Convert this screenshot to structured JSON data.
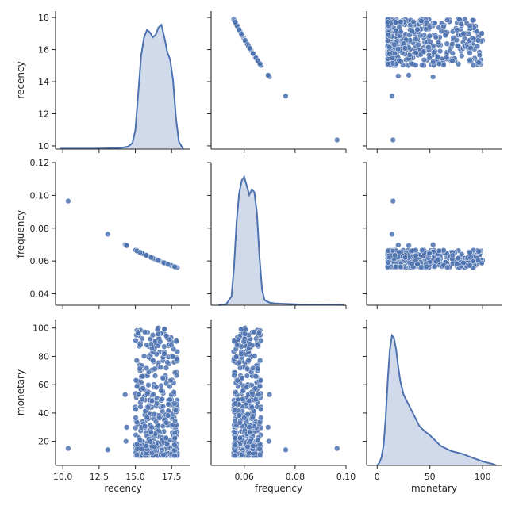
{
  "chart_data": {
    "type": "pairplot",
    "variables": [
      "recency",
      "frequency",
      "monetary"
    ],
    "colors": {
      "accent": "#4c72b0",
      "fill": "#c9d3e6",
      "axis": "#262626",
      "point_edge": "#ffffff"
    },
    "axes": {
      "recency": {
        "label": "recency",
        "x_range": [
          9.5,
          18.8
        ],
        "y_range": [
          9.8,
          18.4
        ],
        "ticks": [
          10,
          12,
          14,
          16,
          18
        ],
        "x_ticks": [
          10.0,
          12.5,
          15.0,
          17.5
        ],
        "x_tick_labels": [
          "10.0",
          "12.5",
          "15.0",
          "17.5"
        ],
        "y_tick_labels": [
          "10",
          "12",
          "14",
          "16",
          "18"
        ]
      },
      "frequency": {
        "label": "frequency",
        "x_range": [
          0.047,
          0.1
        ],
        "y_range": [
          0.033,
          0.12
        ],
        "ticks": [
          0.04,
          0.06,
          0.08,
          0.1,
          0.12
        ],
        "x_ticks": [
          0.06,
          0.08,
          0.1
        ],
        "x_tick_labels": [
          "0.06",
          "0.08",
          "0.10"
        ],
        "y_tick_labels": [
          "0.04",
          "0.06",
          "0.08",
          "0.10",
          "0.12"
        ]
      },
      "monetary": {
        "label": "monetary",
        "x_range": [
          -10,
          118
        ],
        "y_range": [
          3,
          106
        ],
        "ticks": [
          20,
          40,
          60,
          80,
          100
        ],
        "x_ticks": [
          0,
          50,
          100
        ],
        "x_tick_labels": [
          "0",
          "50",
          "100"
        ],
        "y_tick_labels": [
          "20",
          "40",
          "60",
          "80",
          "100"
        ]
      }
    },
    "outliers": [
      {
        "recency": 10.37,
        "frequency": 0.0965,
        "monetary": 15
      },
      {
        "recency": 13.1,
        "frequency": 0.0763,
        "monetary": 14
      },
      {
        "recency": 14.3,
        "frequency": 0.0699,
        "monetary": 53
      },
      {
        "recency": 14.35,
        "frequency": 0.0697,
        "monetary": 20
      },
      {
        "recency": 14.4,
        "frequency": 0.0694,
        "monetary": 30
      }
    ],
    "bulk": {
      "n": 480,
      "recency_range": [
        15.0,
        17.9
      ],
      "monetary_min": 10,
      "monetary_max": 100,
      "relation": "frequency = 1 / recency"
    },
    "kde": {
      "recency": {
        "x": [
          9.8,
          11,
          12,
          13,
          14,
          14.5,
          14.8,
          15.0,
          15.2,
          15.4,
          15.6,
          15.8,
          16.0,
          16.2,
          16.4,
          16.6,
          16.8,
          17.0,
          17.2,
          17.4,
          17.6,
          17.8,
          18.0,
          18.3
        ],
        "y": [
          0.004,
          0.004,
          0.004,
          0.006,
          0.01,
          0.02,
          0.05,
          0.15,
          0.45,
          0.75,
          0.9,
          0.96,
          0.94,
          0.9,
          0.92,
          0.98,
          1.0,
          0.9,
          0.78,
          0.72,
          0.55,
          0.25,
          0.06,
          0.0
        ]
      },
      "frequency": {
        "x": [
          0.05,
          0.053,
          0.055,
          0.056,
          0.057,
          0.058,
          0.059,
          0.06,
          0.061,
          0.062,
          0.063,
          0.064,
          0.065,
          0.066,
          0.067,
          0.068,
          0.07,
          0.072,
          0.075,
          0.08,
          0.085,
          0.09,
          0.095,
          0.097,
          0.099
        ],
        "y": [
          0.0,
          0.01,
          0.07,
          0.3,
          0.65,
          0.87,
          0.97,
          1.0,
          0.93,
          0.86,
          0.9,
          0.88,
          0.72,
          0.38,
          0.12,
          0.04,
          0.02,
          0.015,
          0.012,
          0.008,
          0.004,
          0.004,
          0.006,
          0.006,
          0.002
        ]
      },
      "monetary": {
        "x": [
          0,
          2,
          4,
          6,
          8,
          10,
          12,
          14,
          16,
          18,
          20,
          22,
          25,
          30,
          35,
          40,
          45,
          50,
          55,
          60,
          70,
          80,
          90,
          100,
          110,
          113
        ],
        "y": [
          0.0,
          0.02,
          0.06,
          0.15,
          0.35,
          0.65,
          0.88,
          0.99,
          0.97,
          0.88,
          0.75,
          0.64,
          0.54,
          0.46,
          0.38,
          0.3,
          0.26,
          0.23,
          0.19,
          0.15,
          0.11,
          0.09,
          0.06,
          0.03,
          0.01,
          0.0
        ]
      }
    }
  }
}
